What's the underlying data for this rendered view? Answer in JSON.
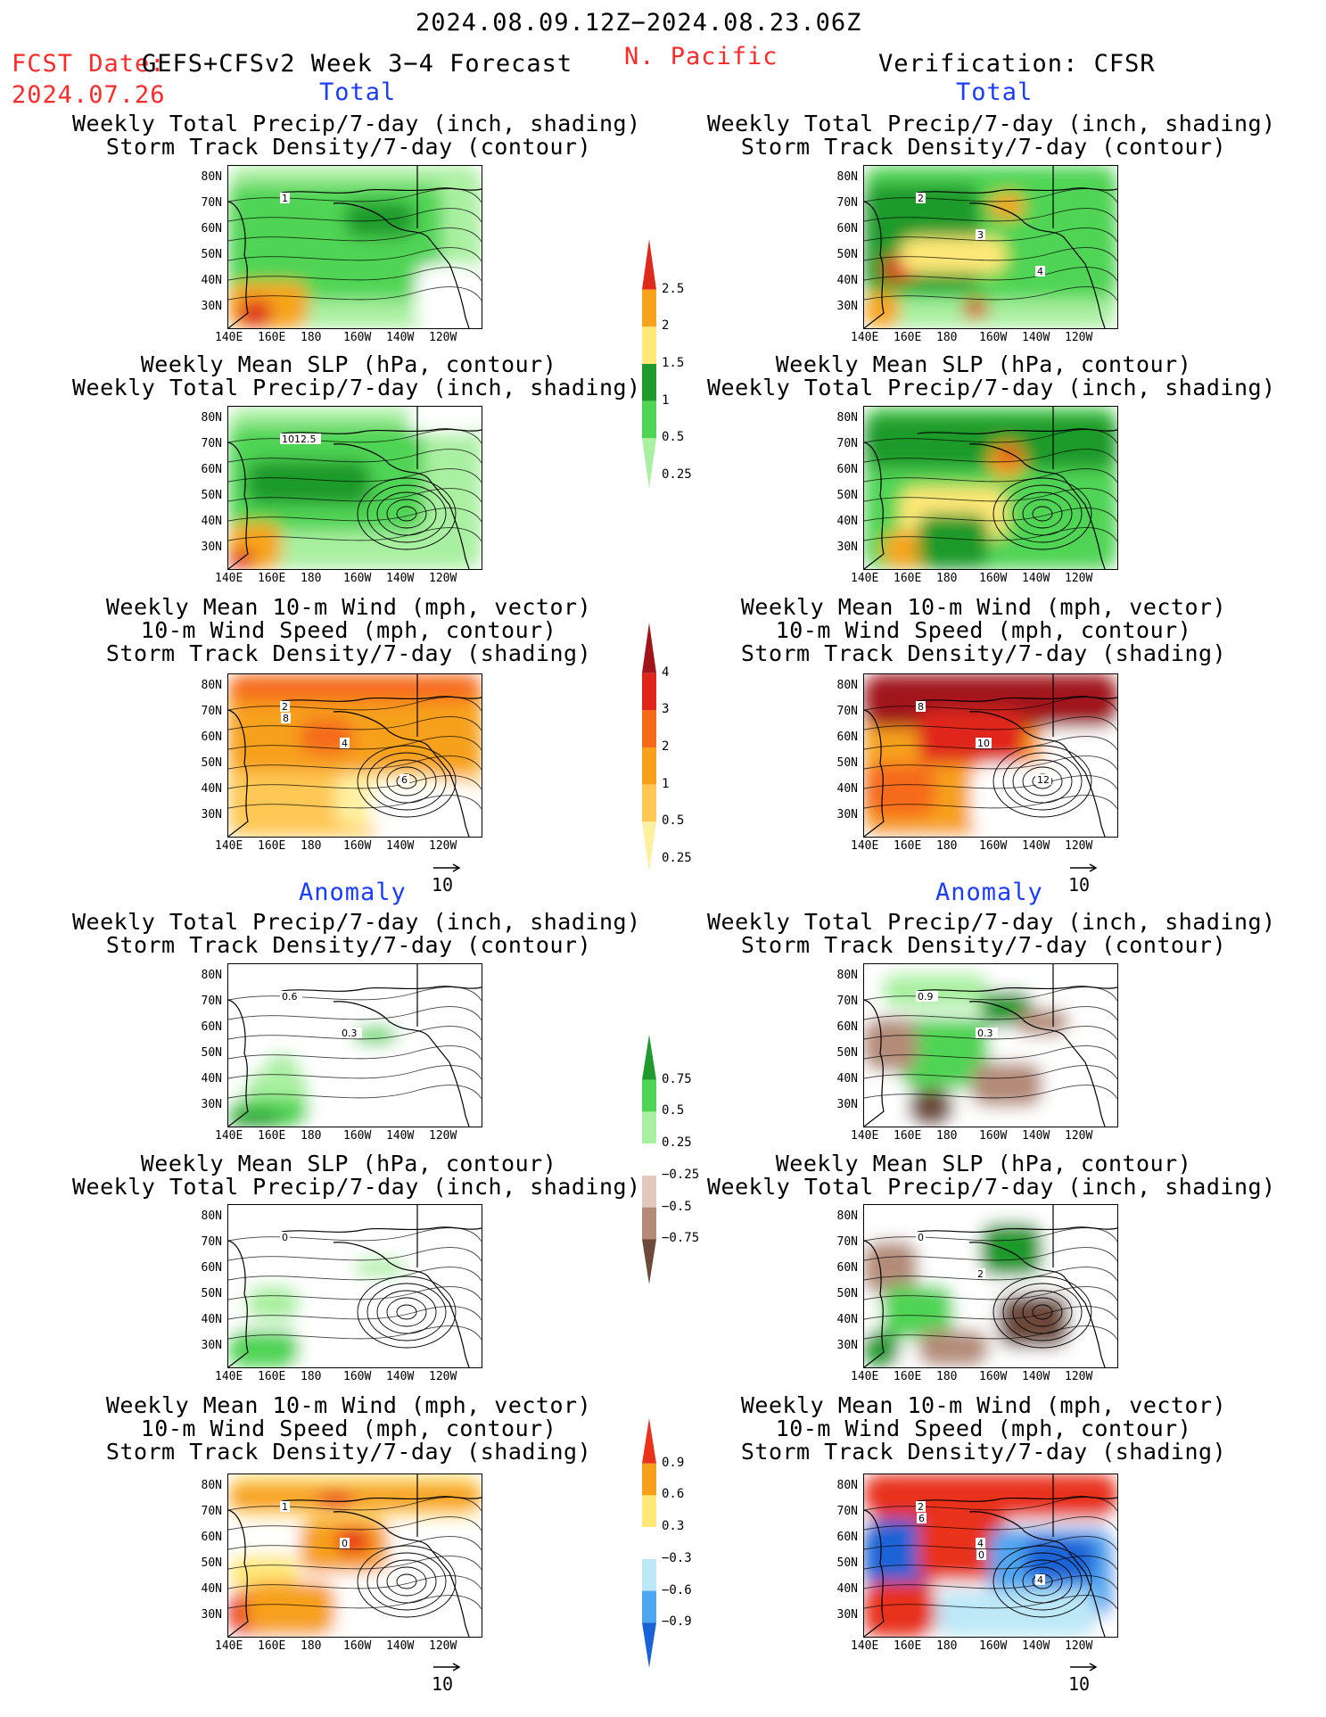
{
  "header": {
    "date_range": "2024.08.09.12Z−2024.08.23.06Z",
    "fcst_label": "FCST Date:",
    "fcst_model": "GEFS+CFSv2 Week 3−4 Forecast",
    "fcst_date": "2024.07.26",
    "region": "N. Pacific",
    "verification": "Verification: CFSR"
  },
  "sections": {
    "total": "Total",
    "anomaly": "Anomaly"
  },
  "titles": {
    "precip_storm": [
      "Weekly Total Precip/7-day (inch, shading)",
      "Storm Track Density/7-day (contour)"
    ],
    "slp_precip": [
      "Weekly Mean SLP (hPa, contour)",
      "Weekly Total Precip/7-day (inch, shading)"
    ],
    "wind_storm": [
      "Weekly Mean 10-m Wind (mph, vector)",
      "10-m Wind Speed (mph, contour)",
      "Storm Track Density/7-day (shading)"
    ]
  },
  "axes": {
    "lat": [
      "80N",
      "70N",
      "60N",
      "50N",
      "40N",
      "30N"
    ],
    "lon": [
      "140E",
      "160E",
      "180",
      "160W",
      "140W",
      "120W"
    ]
  },
  "vector_ref": "10",
  "map_labels": {
    "f_total_precip": [
      "1"
    ],
    "v_total_precip": [
      "2",
      "3",
      "4"
    ],
    "f_total_slp": [
      "1012.5"
    ],
    "f_total_wind": [
      "2",
      "4",
      "6",
      "8"
    ],
    "v_total_wind": [
      "8",
      "10",
      "12"
    ],
    "f_anom_precip": [
      "0.6",
      "0.3"
    ],
    "v_anom_precip": [
      "0.9",
      "0.3"
    ],
    "f_anom_slp": [
      "0"
    ],
    "v_anom_slp": [
      "0",
      "2"
    ],
    "f_anom_wind": [
      "1",
      "0"
    ],
    "v_anom_wind": [
      "2",
      "4",
      "4",
      "6",
      "0"
    ]
  },
  "colorbars": {
    "total_precip": {
      "labels": [
        "2.5",
        "2",
        "1.5",
        "1",
        "0.5",
        "0.25"
      ],
      "colors": [
        "#dd2a1a",
        "#f7a41c",
        "#ffe878",
        "#1f9a2c",
        "#4fd455",
        "#aaf0a2"
      ]
    },
    "total_storm": {
      "labels": [
        "4",
        "3",
        "2",
        "1",
        "0.5",
        "0.25"
      ],
      "colors": [
        "#a1151a",
        "#e0261a",
        "#f66b1a",
        "#f7a01c",
        "#ffc855",
        "#fff0a0"
      ]
    },
    "anom_precip": {
      "labels": [
        "0.75",
        "0.5",
        "0.25",
        "−0.25",
        "−0.5",
        "−0.75"
      ],
      "colors": [
        "#1f9a2c",
        "#4fd455",
        "#aaf0a2",
        "#ffffff",
        "#e3c8bd",
        "#b48b78",
        "#6e4a3a"
      ]
    },
    "anom_storm": {
      "labels": [
        "0.9",
        "0.6",
        "0.3",
        "−0.3",
        "−0.6",
        "−0.9"
      ],
      "colors": [
        "#e8321a",
        "#f7a01c",
        "#ffe878",
        "#ffffff",
        "#bde8f7",
        "#4fa6f0",
        "#1a63d6"
      ]
    }
  }
}
